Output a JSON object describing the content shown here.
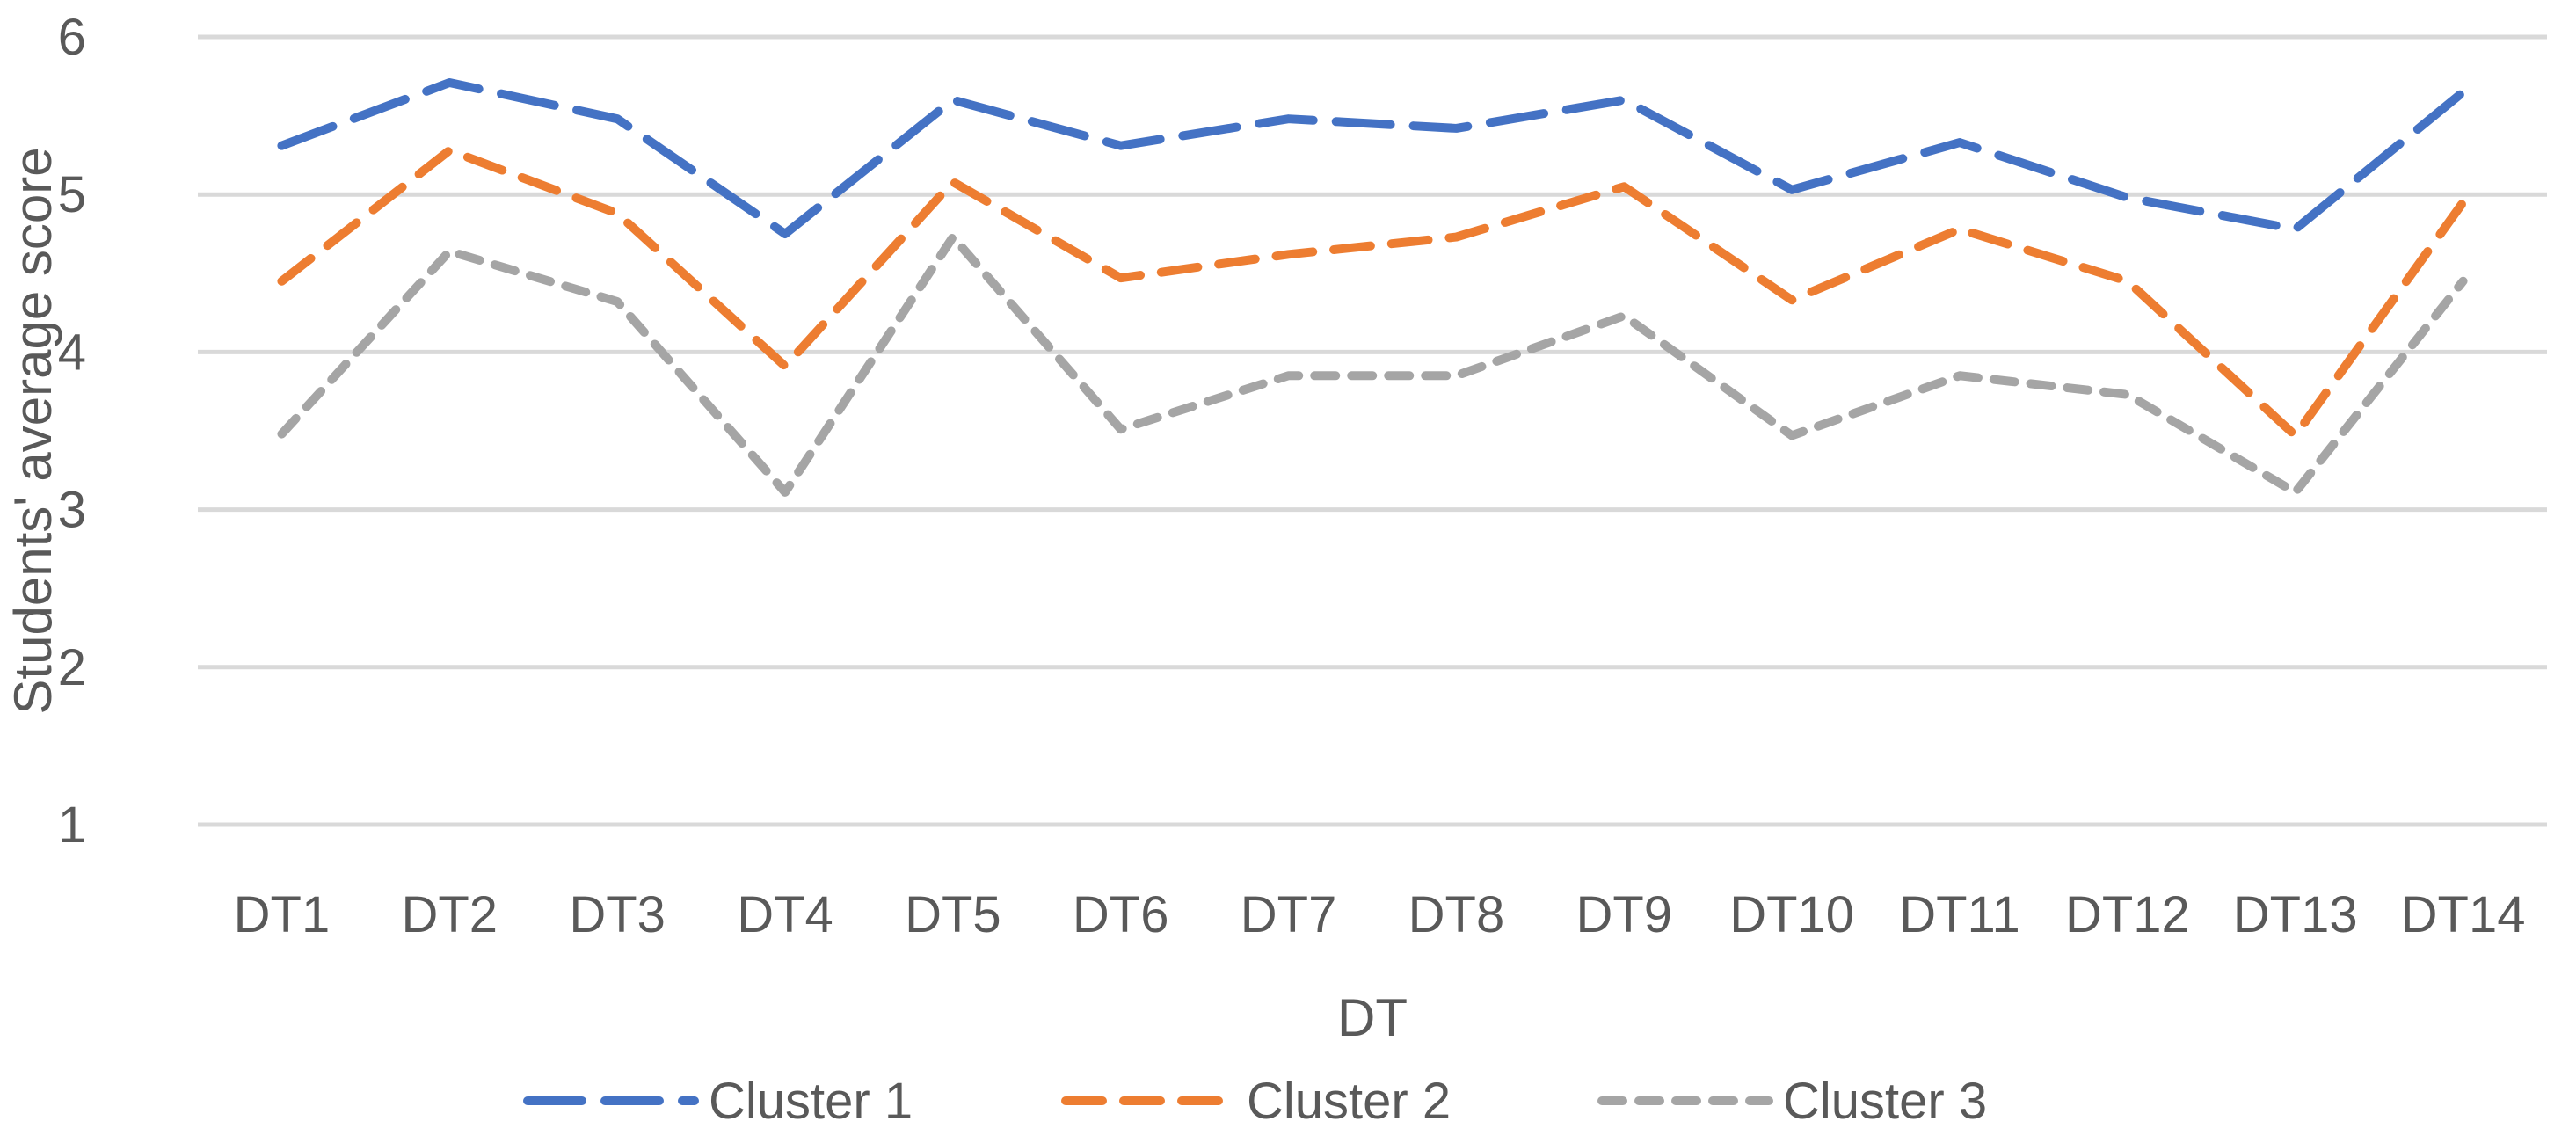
{
  "chart_data": {
    "type": "line",
    "title": "",
    "xlabel": "DT",
    "ylabel": "Students' average score",
    "ylim": [
      1,
      6
    ],
    "yticks": [
      1,
      2,
      3,
      4,
      5,
      6
    ],
    "grid": "horizontal-only",
    "legend_position": "bottom",
    "line_style": "dashed",
    "categories": [
      "DT1",
      "DT2",
      "DT3",
      "DT4",
      "DT5",
      "DT6",
      "DT7",
      "DT8",
      "DT9",
      "DT10",
      "DT11",
      "DT12",
      "DT13",
      "DT14"
    ],
    "series": [
      {
        "name": "Cluster 1",
        "color": "#4472C4",
        "dash": "long",
        "values": [
          5.31,
          5.71,
          5.48,
          4.75,
          5.6,
          5.31,
          5.48,
          5.42,
          5.6,
          5.03,
          5.33,
          4.98,
          4.78,
          5.65
        ]
      },
      {
        "name": "Cluster 2",
        "color": "#ED7D31",
        "dash": "medium",
        "values": [
          4.45,
          5.28,
          4.88,
          3.91,
          5.08,
          4.47,
          4.62,
          4.73,
          5.05,
          4.33,
          4.78,
          4.45,
          3.47,
          4.95
        ]
      },
      {
        "name": "Cluster 3",
        "color": "#A5A5A5",
        "dash": "short",
        "values": [
          3.48,
          4.64,
          4.32,
          3.11,
          4.73,
          3.51,
          3.85,
          3.85,
          4.23,
          3.47,
          3.85,
          3.73,
          3.11,
          4.45
        ]
      }
    ]
  },
  "styles": {
    "grid_color": "#D9D9D9",
    "text_color": "#595959",
    "background": "#FFFFFF",
    "series_stroke_width": 10,
    "grid_stroke_width": 5
  }
}
